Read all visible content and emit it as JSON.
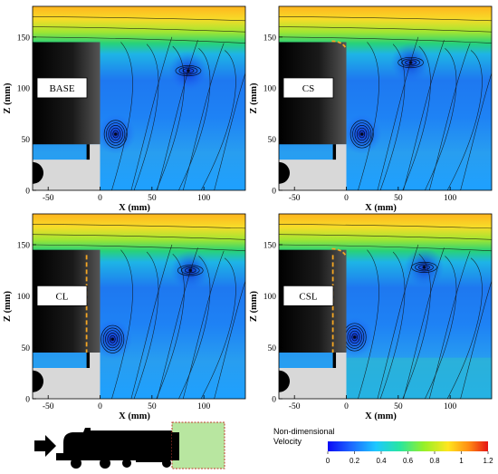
{
  "chart_data": [
    {
      "type": "heatmap",
      "case_label": "BASE",
      "xlabel": "X (mm)",
      "ylabel": "Z (mm)",
      "xlim": [
        -65,
        140
      ],
      "ylim": [
        0,
        180
      ],
      "xticks": [
        "-50",
        "0",
        "50",
        "100"
      ],
      "xtick_values": [
        -50,
        0,
        50,
        100
      ],
      "yticks": [
        "0",
        "50",
        "100",
        "150"
      ],
      "ytick_values": [
        0,
        50,
        100,
        150
      ],
      "vortices": [
        {
          "x": 15,
          "z": 55,
          "label": "lower"
        },
        {
          "x": 85,
          "z": 117,
          "label": "upper"
        }
      ],
      "side_extension": false,
      "underbody_plate": false
    },
    {
      "type": "heatmap",
      "case_label": "CS",
      "xlabel": "X (mm)",
      "ylabel": "Z (mm)",
      "xlim": [
        -65,
        140
      ],
      "ylim": [
        0,
        180
      ],
      "xticks": [
        "-50",
        "0",
        "50",
        "100"
      ],
      "xtick_values": [
        -50,
        0,
        50,
        100
      ],
      "yticks": [
        "0",
        "50",
        "100",
        "150"
      ],
      "ytick_values": [
        0,
        50,
        100,
        150
      ],
      "vortices": [
        {
          "x": 15,
          "z": 55,
          "label": "lower"
        },
        {
          "x": 62,
          "z": 125,
          "label": "upper"
        }
      ],
      "side_extension": false,
      "underbody_plate": false
    },
    {
      "type": "heatmap",
      "case_label": "CL",
      "xlabel": "X (mm)",
      "ylabel": "Z (mm)",
      "xlim": [
        -65,
        140
      ],
      "ylim": [
        0,
        180
      ],
      "xticks": [
        "-50",
        "0",
        "50",
        "100"
      ],
      "xtick_values": [
        -50,
        0,
        50,
        100
      ],
      "yticks": [
        "0",
        "50",
        "100",
        "150"
      ],
      "ytick_values": [
        0,
        50,
        100,
        150
      ],
      "vortices": [
        {
          "x": 12,
          "z": 58,
          "label": "lower"
        },
        {
          "x": 87,
          "z": 125,
          "label": "upper"
        }
      ],
      "side_extension": true,
      "underbody_plate": false
    },
    {
      "type": "heatmap",
      "case_label": "CSL",
      "xlabel": "X (mm)",
      "ylabel": "Z (mm)",
      "xlim": [
        -65,
        140
      ],
      "ylim": [
        0,
        180
      ],
      "xticks": [
        "-50",
        "0",
        "50",
        "100"
      ],
      "xtick_values": [
        -50,
        0,
        50,
        100
      ],
      "yticks": [
        "0",
        "50",
        "100",
        "150"
      ],
      "ytick_values": [
        0,
        50,
        100,
        150
      ],
      "vortices": [
        {
          "x": 8,
          "z": 60,
          "label": "lower"
        },
        {
          "x": 75,
          "z": 128,
          "label": "upper"
        }
      ],
      "side_extension": true,
      "underbody_plate": true
    }
  ],
  "colorbar": {
    "title_line1": "Non-dimensional",
    "title_line2": "Velocity",
    "ticks": [
      "0",
      "0.2",
      "0.4",
      "0.6",
      "0.8",
      "1",
      "1.2"
    ],
    "tick_values": [
      0,
      0.2,
      0.4,
      0.6,
      0.8,
      1.0,
      1.2
    ],
    "colors": [
      "#0a0af5",
      "#1e64ff",
      "#1ec8ff",
      "#28e6a0",
      "#96f028",
      "#ffe61e",
      "#ff8c14",
      "#e61414"
    ]
  },
  "colors": {
    "vehicle": "#000000",
    "ground_block": "#d8d8d8",
    "extension": "#f5a623",
    "window": "#b8e6a0",
    "window_border": "#c0392b"
  },
  "legend_icons": [
    "flow-arrow-icon",
    "truck-silhouette-icon"
  ]
}
